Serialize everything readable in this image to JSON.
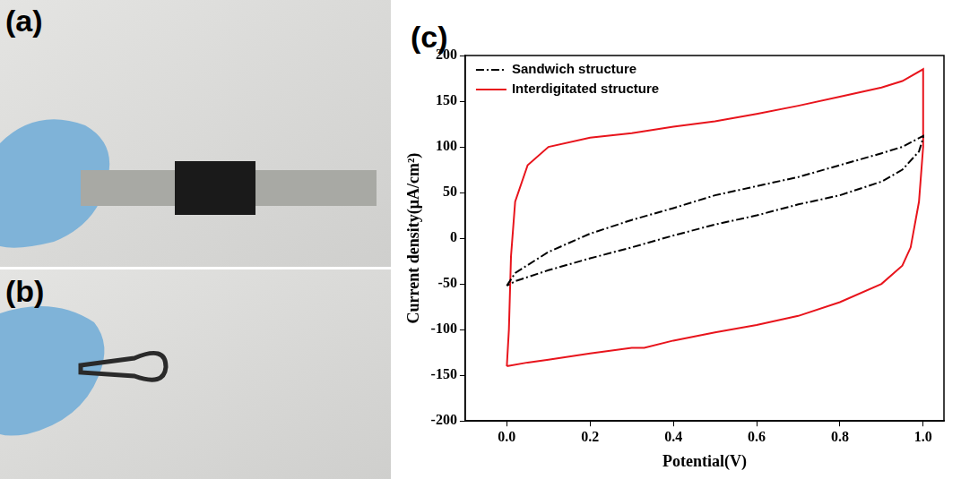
{
  "panel_labels": [
    "(a)",
    "(b)",
    "(c)"
  ],
  "chart_data": {
    "type": "line",
    "x_label": "Potential(V)",
    "y_label": "Current density(μA/cm²)",
    "xlim": [
      -0.1,
      1.05
    ],
    "xticks": [
      {
        "value": 0,
        "label": "0.0"
      },
      {
        "value": 0.2,
        "label": "0.2"
      },
      {
        "value": 0.4,
        "label": "0.4"
      },
      {
        "value": 0.6,
        "label": "0.6"
      },
      {
        "value": 0.8,
        "label": "0.8"
      },
      {
        "value": 1,
        "label": "1.0"
      }
    ],
    "ylim": [
      -200,
      200
    ],
    "yticks": [
      -200,
      -150,
      -100,
      -50,
      0,
      50,
      100,
      150,
      200
    ],
    "grid": false,
    "legend": "upper left",
    "series": [
      {
        "name": "Sandwich structure",
        "color": "#000000",
        "line_style": "dashdot",
        "x": [
          0,
          0.02,
          0.1,
          0.2,
          0.3,
          0.4,
          0.5,
          0.6,
          0.7,
          0.8,
          0.9,
          0.95,
          1.0,
          1.0,
          0.99,
          0.95,
          0.9,
          0.8,
          0.7,
          0.6,
          0.5,
          0.4,
          0.3,
          0.2,
          0.1,
          0.02,
          0
        ],
        "values": [
          -52,
          -38,
          -15,
          5,
          20,
          33,
          47,
          57,
          67,
          80,
          93,
          100,
          112,
          110,
          95,
          75,
          62,
          47,
          37,
          25,
          15,
          3,
          -10,
          -22,
          -35,
          -47,
          -52
        ]
      },
      {
        "name": "Interdigitated structure",
        "color": "#e8141c",
        "line_style": "solid",
        "x": [
          0,
          0.005,
          0.01,
          0.02,
          0.05,
          0.1,
          0.2,
          0.3,
          0.4,
          0.5,
          0.6,
          0.7,
          0.8,
          0.9,
          0.95,
          1.0,
          1.0,
          0.99,
          0.97,
          0.95,
          0.9,
          0.8,
          0.7,
          0.6,
          0.5,
          0.4,
          0.33,
          0.3,
          0.2,
          0.1,
          0.05,
          0
        ],
        "values": [
          -140,
          -100,
          -20,
          40,
          80,
          100,
          110,
          115,
          122,
          128,
          136,
          145,
          155,
          165,
          172,
          185,
          100,
          40,
          -10,
          -30,
          -50,
          -70,
          -85,
          -95,
          -103,
          -112,
          -120,
          -120,
          -126,
          -133,
          -136,
          -140
        ]
      }
    ]
  }
}
